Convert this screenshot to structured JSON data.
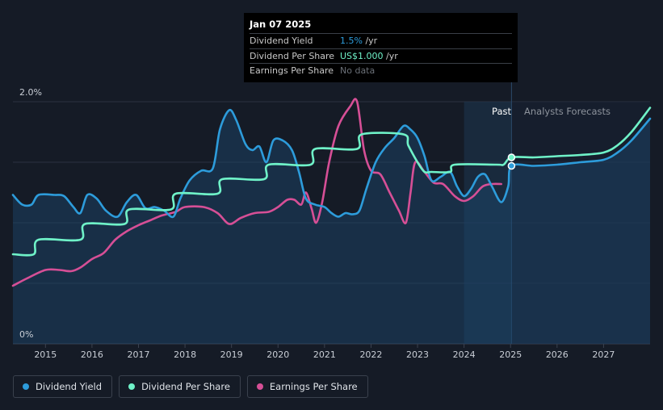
{
  "tooltip": {
    "date": "Jan 07 2025",
    "rows": [
      {
        "label": "Dividend Yield",
        "value": "1.5%",
        "unit": " /yr",
        "color": "#2d9cdb"
      },
      {
        "label": "Dividend Per Share",
        "value": "US$1.000",
        "unit": " /yr",
        "color": "#6ff2c8"
      },
      {
        "label": "Earnings Per Share",
        "value": "No data",
        "unit": "",
        "color": "#6b7078"
      }
    ]
  },
  "regions": {
    "past_label": "Past",
    "forecast_label": "Analysts Forecasts"
  },
  "legend": [
    {
      "label": "Dividend Yield",
      "color": "#2d9cdb"
    },
    {
      "label": "Dividend Per Share",
      "color": "#6ff2c8"
    },
    {
      "label": "Earnings Per Share",
      "color": "#d64f96"
    }
  ],
  "chart_data": {
    "type": "line",
    "title": "",
    "xlabel": "",
    "ylabel": "",
    "x_ticks": [
      "2015",
      "2016",
      "2017",
      "2018",
      "2019",
      "2020",
      "2021",
      "2022",
      "2023",
      "2024",
      "2025",
      "2026",
      "2027"
    ],
    "y_tick_labels": [
      "2.0%",
      "0%"
    ],
    "ylim": [
      0,
      2.0
    ],
    "xlim": [
      2014.3,
      2028.0
    ],
    "past_end": 2025.02,
    "highlight_start": 2024.0,
    "grid": true,
    "legend_position": "bottom-left",
    "series": [
      {
        "name": "Dividend Yield",
        "color": "#2d9cdb",
        "points": [
          [
            2014.3,
            1.23
          ],
          [
            2014.5,
            1.15
          ],
          [
            2014.7,
            1.15
          ],
          [
            2014.85,
            1.23
          ],
          [
            2015.2,
            1.23
          ],
          [
            2015.4,
            1.22
          ],
          [
            2015.6,
            1.13
          ],
          [
            2015.75,
            1.08
          ],
          [
            2015.9,
            1.23
          ],
          [
            2016.1,
            1.2
          ],
          [
            2016.3,
            1.1
          ],
          [
            2016.55,
            1.05
          ],
          [
            2016.75,
            1.17
          ],
          [
            2016.95,
            1.23
          ],
          [
            2017.15,
            1.12
          ],
          [
            2017.35,
            1.13
          ],
          [
            2017.55,
            1.1
          ],
          [
            2017.75,
            1.05
          ],
          [
            2017.9,
            1.2
          ],
          [
            2018.1,
            1.35
          ],
          [
            2018.35,
            1.43
          ],
          [
            2018.6,
            1.45
          ],
          [
            2018.75,
            1.77
          ],
          [
            2018.95,
            1.93
          ],
          [
            2019.1,
            1.85
          ],
          [
            2019.3,
            1.65
          ],
          [
            2019.45,
            1.6
          ],
          [
            2019.6,
            1.63
          ],
          [
            2019.75,
            1.5
          ],
          [
            2019.9,
            1.68
          ],
          [
            2020.1,
            1.68
          ],
          [
            2020.3,
            1.6
          ],
          [
            2020.45,
            1.42
          ],
          [
            2020.6,
            1.2
          ],
          [
            2020.8,
            1.15
          ],
          [
            2021.0,
            1.13
          ],
          [
            2021.15,
            1.08
          ],
          [
            2021.3,
            1.05
          ],
          [
            2021.45,
            1.08
          ],
          [
            2021.6,
            1.07
          ],
          [
            2021.75,
            1.1
          ],
          [
            2021.9,
            1.28
          ],
          [
            2022.1,
            1.5
          ],
          [
            2022.3,
            1.62
          ],
          [
            2022.5,
            1.7
          ],
          [
            2022.7,
            1.8
          ],
          [
            2022.85,
            1.77
          ],
          [
            2023.0,
            1.7
          ],
          [
            2023.15,
            1.55
          ],
          [
            2023.3,
            1.35
          ],
          [
            2023.5,
            1.38
          ],
          [
            2023.7,
            1.42
          ],
          [
            2023.85,
            1.3
          ],
          [
            2024.0,
            1.22
          ],
          [
            2024.15,
            1.28
          ],
          [
            2024.3,
            1.38
          ],
          [
            2024.45,
            1.4
          ],
          [
            2024.6,
            1.3
          ],
          [
            2024.8,
            1.17
          ],
          [
            2024.95,
            1.3
          ],
          [
            2025.02,
            1.47
          ],
          [
            2025.5,
            1.47
          ],
          [
            2026.0,
            1.48
          ],
          [
            2026.5,
            1.5
          ],
          [
            2027.0,
            1.52
          ],
          [
            2027.3,
            1.58
          ],
          [
            2027.6,
            1.68
          ],
          [
            2028.0,
            1.86
          ]
        ]
      },
      {
        "name": "Dividend Per Share",
        "color": "#6ff2c8",
        "points": [
          [
            2014.3,
            0.74
          ],
          [
            2014.75,
            0.74
          ],
          [
            2014.85,
            0.86
          ],
          [
            2015.75,
            0.86
          ],
          [
            2015.85,
            0.99
          ],
          [
            2016.7,
            0.99
          ],
          [
            2016.8,
            1.11
          ],
          [
            2017.7,
            1.11
          ],
          [
            2017.8,
            1.24
          ],
          [
            2018.7,
            1.24
          ],
          [
            2018.8,
            1.36
          ],
          [
            2019.7,
            1.36
          ],
          [
            2019.8,
            1.48
          ],
          [
            2020.7,
            1.48
          ],
          [
            2020.8,
            1.61
          ],
          [
            2021.7,
            1.61
          ],
          [
            2021.8,
            1.73
          ],
          [
            2022.7,
            1.73
          ],
          [
            2022.8,
            1.64
          ],
          [
            2023.0,
            1.5
          ],
          [
            2023.15,
            1.42
          ],
          [
            2023.3,
            1.42
          ],
          [
            2023.7,
            1.42
          ],
          [
            2023.8,
            1.48
          ],
          [
            2024.7,
            1.48
          ],
          [
            2024.85,
            1.48
          ],
          [
            2025.02,
            1.54
          ],
          [
            2025.5,
            1.54
          ],
          [
            2026.0,
            1.55
          ],
          [
            2026.5,
            1.56
          ],
          [
            2027.0,
            1.58
          ],
          [
            2027.3,
            1.64
          ],
          [
            2027.6,
            1.75
          ],
          [
            2028.0,
            1.95
          ]
        ]
      },
      {
        "name": "Earnings Per Share",
        "color": "#d64f96",
        "points": [
          [
            2014.3,
            0.48
          ],
          [
            2014.6,
            0.54
          ],
          [
            2015.0,
            0.61
          ],
          [
            2015.3,
            0.61
          ],
          [
            2015.55,
            0.6
          ],
          [
            2015.75,
            0.63
          ],
          [
            2016.0,
            0.7
          ],
          [
            2016.25,
            0.75
          ],
          [
            2016.5,
            0.86
          ],
          [
            2016.75,
            0.93
          ],
          [
            2017.0,
            0.98
          ],
          [
            2017.25,
            1.02
          ],
          [
            2017.5,
            1.06
          ],
          [
            2017.8,
            1.09
          ],
          [
            2018.0,
            1.13
          ],
          [
            2018.4,
            1.13
          ],
          [
            2018.7,
            1.08
          ],
          [
            2018.95,
            0.99
          ],
          [
            2019.2,
            1.04
          ],
          [
            2019.5,
            1.08
          ],
          [
            2019.8,
            1.09
          ],
          [
            2020.0,
            1.13
          ],
          [
            2020.2,
            1.19
          ],
          [
            2020.35,
            1.19
          ],
          [
            2020.5,
            1.15
          ],
          [
            2020.6,
            1.25
          ],
          [
            2020.72,
            1.12
          ],
          [
            2020.82,
            1.0
          ],
          [
            2020.95,
            1.17
          ],
          [
            2021.1,
            1.5
          ],
          [
            2021.3,
            1.8
          ],
          [
            2021.55,
            1.96
          ],
          [
            2021.7,
            2.0
          ],
          [
            2021.85,
            1.6
          ],
          [
            2022.0,
            1.43
          ],
          [
            2022.2,
            1.4
          ],
          [
            2022.4,
            1.25
          ],
          [
            2022.6,
            1.1
          ],
          [
            2022.75,
            1.0
          ],
          [
            2022.85,
            1.25
          ],
          [
            2022.95,
            1.5
          ],
          [
            2023.15,
            1.42
          ],
          [
            2023.35,
            1.33
          ],
          [
            2023.55,
            1.32
          ],
          [
            2023.8,
            1.22
          ],
          [
            2024.0,
            1.18
          ],
          [
            2024.2,
            1.22
          ],
          [
            2024.4,
            1.3
          ],
          [
            2024.6,
            1.32
          ],
          [
            2024.8,
            1.32
          ]
        ]
      }
    ]
  }
}
